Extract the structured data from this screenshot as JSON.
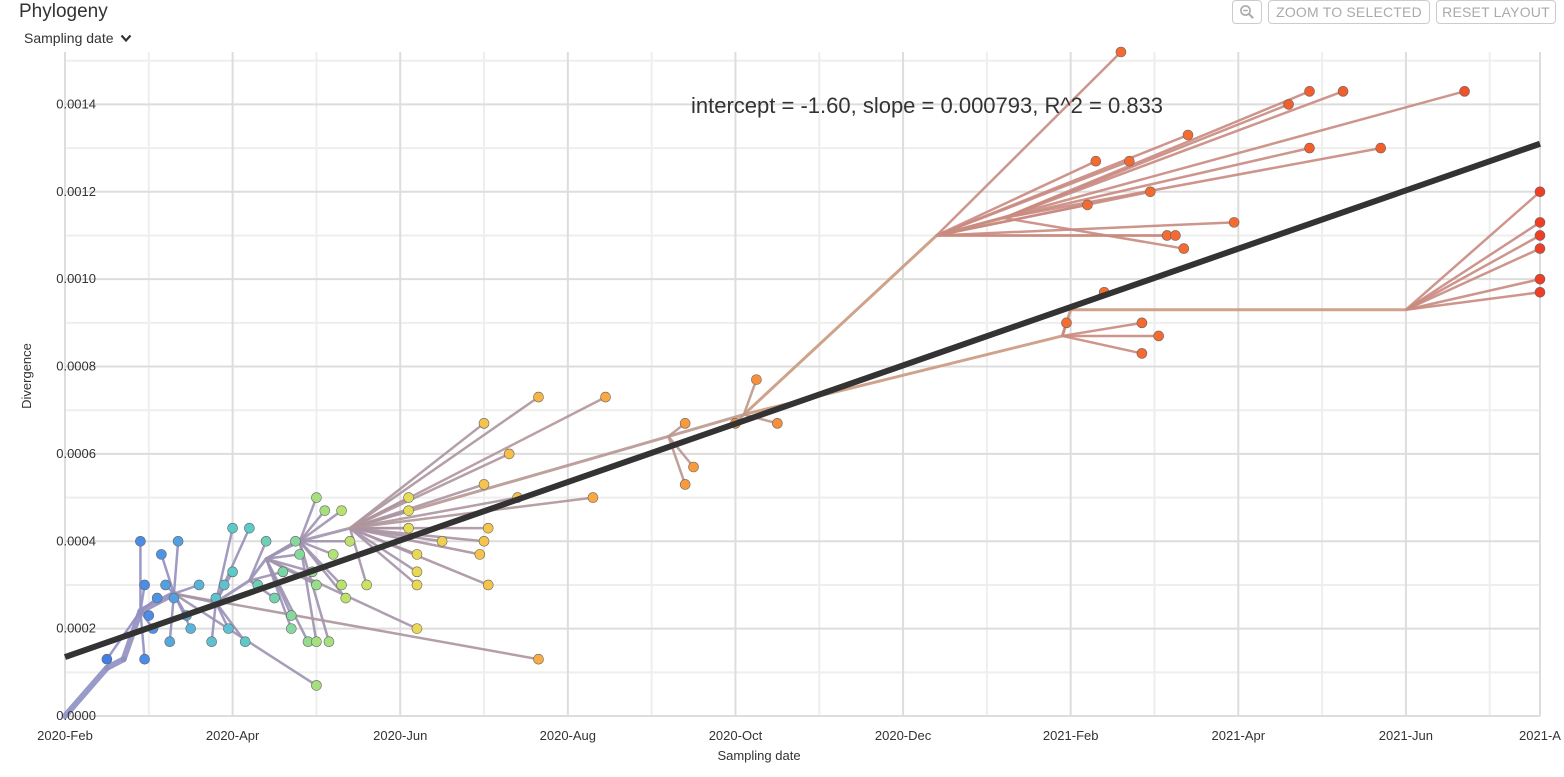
{
  "header": {
    "title": "Phylogeny",
    "layout_selector": "Sampling date",
    "zoom_to_selected": "ZOOM TO SELECTED",
    "reset_layout": "RESET LAYOUT",
    "zoom_icon": "magnifier-minus-icon"
  },
  "colors": {
    "regression_line": "#333333",
    "grid": "#dddddd",
    "early_branch": "#8c8fc8",
    "late_branch": "#c98a80"
  },
  "chart_data": {
    "type": "scatter",
    "title": "Phylogeny",
    "xlabel": "Sampling date",
    "ylabel": "Divergence",
    "x_units": "months since 2020-Feb",
    "xlim": [
      0,
      17.6
    ],
    "ylim": [
      0,
      0.00152
    ],
    "x_ticks": [
      {
        "value": 0,
        "label": "2020-Feb"
      },
      {
        "value": 2,
        "label": "2020-Apr"
      },
      {
        "value": 4,
        "label": "2020-Jun"
      },
      {
        "value": 6,
        "label": "2020-Aug"
      },
      {
        "value": 8,
        "label": "2020-Oct"
      },
      {
        "value": 10,
        "label": "2020-Dec"
      },
      {
        "value": 12,
        "label": "2021-Feb"
      },
      {
        "value": 14,
        "label": "2021-Apr"
      },
      {
        "value": 16,
        "label": "2021-Jun"
      },
      {
        "value": 17.6,
        "label": "2021-A"
      }
    ],
    "y_ticks": [
      {
        "value": 0,
        "label": "0.0000"
      },
      {
        "value": 0.0002,
        "label": "0.0002"
      },
      {
        "value": 0.0004,
        "label": "0.0004"
      },
      {
        "value": 0.0006,
        "label": "0.0006"
      },
      {
        "value": 0.0008,
        "label": "0.0008"
      },
      {
        "value": 0.001,
        "label": "0.0010"
      },
      {
        "value": 0.0012,
        "label": "0.0012"
      },
      {
        "value": 0.0014,
        "label": "0.0014"
      }
    ],
    "regression": {
      "label": "intercept = -1.60, slope = 0.000793, R^2 = 0.833",
      "start": [
        0,
        0.000135
      ],
      "end": [
        17.6,
        0.00131
      ]
    },
    "internal_nodes": [
      {
        "id": "root",
        "x": 0,
        "y": 0
      },
      {
        "id": "n1",
        "x": 0.5,
        "y": 0.00011
      },
      {
        "id": "n2",
        "x": 0.7,
        "y": 0.00013
      },
      {
        "id": "c1",
        "x": 0.9,
        "y": 0.00024
      },
      {
        "id": "c2",
        "x": 1.3,
        "y": 0.00028
      },
      {
        "id": "c3",
        "x": 1.8,
        "y": 0.00026
      },
      {
        "id": "c4",
        "x": 2.2,
        "y": 0.00031
      },
      {
        "id": "c5",
        "x": 2.4,
        "y": 0.00036
      },
      {
        "id": "c6",
        "x": 2.8,
        "y": 0.0004
      },
      {
        "id": "c7",
        "x": 3.4,
        "y": 0.00043
      },
      {
        "id": "m1",
        "x": 7.2,
        "y": 0.00064
      },
      {
        "id": "m2",
        "x": 8.1,
        "y": 0.00069
      },
      {
        "id": "big",
        "x": 10.4,
        "y": 0.0011
      },
      {
        "id": "b2",
        "x": 11.2,
        "y": 0.00114
      },
      {
        "id": "f1",
        "x": 11.9,
        "y": 0.00087
      },
      {
        "id": "f2",
        "x": 12.0,
        "y": 0.00093
      },
      {
        "id": "f3",
        "x": 16.0,
        "y": 0.00093
      }
    ],
    "tips": [
      {
        "parent": "c1",
        "x": 0.5,
        "y": 0.00013,
        "color": "#3f7ee8"
      },
      {
        "parent": "c1",
        "x": 0.9,
        "y": 0.0004,
        "color": "#4a8ce8"
      },
      {
        "parent": "c1",
        "x": 0.95,
        "y": 0.0003,
        "color": "#4a8ce8"
      },
      {
        "parent": "c1",
        "x": 1.0,
        "y": 0.00023,
        "color": "#4a8ce8"
      },
      {
        "parent": "c1",
        "x": 1.1,
        "y": 0.00027,
        "color": "#4e94e4"
      },
      {
        "parent": "c1",
        "x": 0.95,
        "y": 0.00013,
        "color": "#4a8ce8"
      },
      {
        "parent": "c1",
        "x": 1.05,
        "y": 0.0002,
        "color": "#4e94e4"
      },
      {
        "parent": "c2",
        "x": 1.15,
        "y": 0.00037,
        "color": "#4e94e4"
      },
      {
        "parent": "c2",
        "x": 1.35,
        "y": 0.0004,
        "color": "#52a0e2"
      },
      {
        "parent": "c2",
        "x": 1.2,
        "y": 0.0003,
        "color": "#52a0e2"
      },
      {
        "parent": "c2",
        "x": 1.3,
        "y": 0.00027,
        "color": "#52a0e2"
      },
      {
        "parent": "c2",
        "x": 1.25,
        "y": 0.00017,
        "color": "#55a8de"
      },
      {
        "parent": "c2",
        "x": 1.45,
        "y": 0.00023,
        "color": "#55a8de"
      },
      {
        "parent": "c2",
        "x": 1.6,
        "y": 0.0003,
        "color": "#5ab4d8"
      },
      {
        "parent": "c2",
        "x": 1.5,
        "y": 0.0002,
        "color": "#5ab4d8"
      },
      {
        "parent": "c3",
        "x": 1.9,
        "y": 0.0003,
        "color": "#5fc0d0"
      },
      {
        "parent": "c3",
        "x": 2.0,
        "y": 0.00043,
        "color": "#5ccac8"
      },
      {
        "parent": "c3",
        "x": 2.2,
        "y": 0.00043,
        "color": "#5ccac8"
      },
      {
        "parent": "c3",
        "x": 1.75,
        "y": 0.00017,
        "color": "#5fc0d0"
      },
      {
        "parent": "c3",
        "x": 1.95,
        "y": 0.0002,
        "color": "#5fc0d0"
      },
      {
        "parent": "c3",
        "x": 2.15,
        "y": 0.00017,
        "color": "#5ccac8"
      },
      {
        "parent": "c3",
        "x": 1.8,
        "y": 0.00027,
        "color": "#5fc0d0"
      },
      {
        "parent": "c3",
        "x": 2.0,
        "y": 0.00033,
        "color": "#5ccac8"
      },
      {
        "parent": "c4",
        "x": 2.3,
        "y": 0.0003,
        "color": "#6ccfb8"
      },
      {
        "parent": "c4",
        "x": 2.4,
        "y": 0.0004,
        "color": "#6ccfb8"
      },
      {
        "parent": "c4",
        "x": 2.5,
        "y": 0.00027,
        "color": "#74d3ae"
      },
      {
        "parent": "c4",
        "x": 2.6,
        "y": 0.00033,
        "color": "#7ad6a6"
      },
      {
        "parent": "c5",
        "x": 2.75,
        "y": 0.0004,
        "color": "#86d89c"
      },
      {
        "parent": "c5",
        "x": 2.8,
        "y": 0.00037,
        "color": "#86d89c"
      },
      {
        "parent": "c5",
        "x": 2.7,
        "y": 0.00023,
        "color": "#86d89c"
      },
      {
        "parent": "c5",
        "x": 2.7,
        "y": 0.0002,
        "color": "#86d89c"
      },
      {
        "parent": "c5",
        "x": 2.9,
        "y": 0.00017,
        "color": "#92dc90"
      },
      {
        "parent": "c5",
        "x": 3.0,
        "y": 0.0003,
        "color": "#98de8a"
      },
      {
        "parent": "c5",
        "x": 2.95,
        "y": 0.00033,
        "color": "#98de8a"
      },
      {
        "parent": "c6",
        "x": 3.0,
        "y": 0.0005,
        "color": "#a6e07e"
      },
      {
        "parent": "c6",
        "x": 3.1,
        "y": 0.00047,
        "color": "#a6e07e"
      },
      {
        "parent": "c6",
        "x": 3.0,
        "y": 0.00017,
        "color": "#a6e07e"
      },
      {
        "parent": "c6",
        "x": 3.15,
        "y": 0.00017,
        "color": "#a6e07e"
      },
      {
        "parent": "c6",
        "x": 3.2,
        "y": 0.00037,
        "color": "#b0e276"
      },
      {
        "parent": "c6",
        "x": 3.3,
        "y": 0.00047,
        "color": "#b8e270"
      },
      {
        "parent": "c6",
        "x": 3.4,
        "y": 0.0004,
        "color": "#bce26c"
      },
      {
        "parent": "c6",
        "x": 3.3,
        "y": 0.0003,
        "color": "#b8e270"
      },
      {
        "parent": "c6",
        "x": 3.35,
        "y": 0.00027,
        "color": "#bce26c"
      },
      {
        "parent": "c2",
        "x": 3.0,
        "y": 7e-05,
        "color": "#a6e07e"
      },
      {
        "parent": "c7",
        "x": 3.6,
        "y": 0.0003,
        "color": "#cce262"
      },
      {
        "parent": "c7",
        "x": 4.1,
        "y": 0.0005,
        "color": "#e4dc56"
      },
      {
        "parent": "c7",
        "x": 4.1,
        "y": 0.00047,
        "color": "#e4dc56"
      },
      {
        "parent": "c7",
        "x": 4.1,
        "y": 0.00043,
        "color": "#e4dc56"
      },
      {
        "parent": "c7",
        "x": 4.2,
        "y": 0.00037,
        "color": "#ead854"
      },
      {
        "parent": "c7",
        "x": 4.2,
        "y": 0.00033,
        "color": "#ead854"
      },
      {
        "parent": "c7",
        "x": 4.2,
        "y": 0.0003,
        "color": "#ead854"
      },
      {
        "parent": "c5",
        "x": 4.2,
        "y": 0.0002,
        "color": "#ead854"
      },
      {
        "parent": "c7",
        "x": 4.5,
        "y": 0.0004,
        "color": "#f0d050"
      },
      {
        "parent": "c7",
        "x": 5.0,
        "y": 0.00067,
        "color": "#f6c44c"
      },
      {
        "parent": "c7",
        "x": 5.0,
        "y": 0.00053,
        "color": "#f6c44c"
      },
      {
        "parent": "c7",
        "x": 5.05,
        "y": 0.00043,
        "color": "#f6c44c"
      },
      {
        "parent": "c7",
        "x": 5.0,
        "y": 0.0004,
        "color": "#f6c44c"
      },
      {
        "parent": "c7",
        "x": 4.95,
        "y": 0.00037,
        "color": "#f6c44c"
      },
      {
        "parent": "c7",
        "x": 5.05,
        "y": 0.0003,
        "color": "#f6c44c"
      },
      {
        "parent": "c7",
        "x": 5.3,
        "y": 0.0006,
        "color": "#f8be4a"
      },
      {
        "parent": "c7",
        "x": 5.4,
        "y": 0.0005,
        "color": "#f8be4a"
      },
      {
        "parent": "c7",
        "x": 5.65,
        "y": 0.00073,
        "color": "#f9b446"
      },
      {
        "parent": "c2",
        "x": 5.65,
        "y": 0.00013,
        "color": "#f9ac42"
      },
      {
        "parent": "c7",
        "x": 6.3,
        "y": 0.0005,
        "color": "#faa840"
      },
      {
        "parent": "c7",
        "x": 6.45,
        "y": 0.00073,
        "color": "#faa840"
      },
      {
        "parent": "m1",
        "x": 7.4,
        "y": 0.00067,
        "color": "#f99a3c"
      },
      {
        "parent": "m1",
        "x": 7.4,
        "y": 0.00053,
        "color": "#f99a3c"
      },
      {
        "parent": "m1",
        "x": 7.5,
        "y": 0.00057,
        "color": "#f99a3c"
      },
      {
        "parent": "m2",
        "x": 8.0,
        "y": 0.00067,
        "color": "#f8903a"
      },
      {
        "parent": "m2",
        "x": 8.25,
        "y": 0.00077,
        "color": "#f8903a"
      },
      {
        "parent": "m2",
        "x": 8.5,
        "y": 0.00067,
        "color": "#f8903a"
      },
      {
        "parent": "big",
        "x": 12.6,
        "y": 0.00152,
        "color": "#f46a30"
      },
      {
        "parent": "big",
        "x": 12.3,
        "y": 0.00127,
        "color": "#f46a30"
      },
      {
        "parent": "big",
        "x": 12.2,
        "y": 0.00117,
        "color": "#f46a30"
      },
      {
        "parent": "big",
        "x": 12.7,
        "y": 0.00127,
        "color": "#f46a30"
      },
      {
        "parent": "big",
        "x": 12.95,
        "y": 0.0012,
        "color": "#f46a30"
      },
      {
        "parent": "big",
        "x": 13.4,
        "y": 0.00133,
        "color": "#f46a30"
      },
      {
        "parent": "big",
        "x": 13.15,
        "y": 0.0011,
        "color": "#f46a30"
      },
      {
        "parent": "big",
        "x": 13.25,
        "y": 0.0011,
        "color": "#f46a30"
      },
      {
        "parent": "big",
        "x": 13.95,
        "y": 0.00113,
        "color": "#f46a30"
      },
      {
        "parent": "b2",
        "x": 14.6,
        "y": 0.0014,
        "color": "#f25e2c"
      },
      {
        "parent": "b2",
        "x": 14.85,
        "y": 0.00143,
        "color": "#f25e2c"
      },
      {
        "parent": "b2",
        "x": 15.25,
        "y": 0.00143,
        "color": "#f25e2c"
      },
      {
        "parent": "b2",
        "x": 14.85,
        "y": 0.0013,
        "color": "#f25e2c"
      },
      {
        "parent": "b2",
        "x": 15.7,
        "y": 0.0013,
        "color": "#f25e2c"
      },
      {
        "parent": "big",
        "x": 16.7,
        "y": 0.00143,
        "color": "#f0522a"
      },
      {
        "parent": "b2",
        "x": 13.35,
        "y": 0.00107,
        "color": "#f46a30"
      },
      {
        "parent": "f1",
        "x": 11.95,
        "y": 0.0009,
        "color": "#f56e30"
      },
      {
        "parent": "f2",
        "x": 12.4,
        "y": 0.00097,
        "color": "#f56e30"
      },
      {
        "parent": "f1",
        "x": 12.85,
        "y": 0.0009,
        "color": "#f46a30"
      },
      {
        "parent": "f1",
        "x": 12.85,
        "y": 0.00083,
        "color": "#f46a30"
      },
      {
        "parent": "f1",
        "x": 13.05,
        "y": 0.00087,
        "color": "#f46a30"
      },
      {
        "parent": "f3",
        "x": 17.6,
        "y": 0.0012,
        "color": "#ee3e26"
      },
      {
        "parent": "f3",
        "x": 17.6,
        "y": 0.00113,
        "color": "#ee3e26"
      },
      {
        "parent": "f3",
        "x": 17.6,
        "y": 0.0011,
        "color": "#ee3e26"
      },
      {
        "parent": "f3",
        "x": 17.6,
        "y": 0.00107,
        "color": "#ee3e26"
      },
      {
        "parent": "f3",
        "x": 17.6,
        "y": 0.001,
        "color": "#ee3e26"
      },
      {
        "parent": "f3",
        "x": 17.6,
        "y": 0.00097,
        "color": "#ee3e26"
      }
    ]
  }
}
